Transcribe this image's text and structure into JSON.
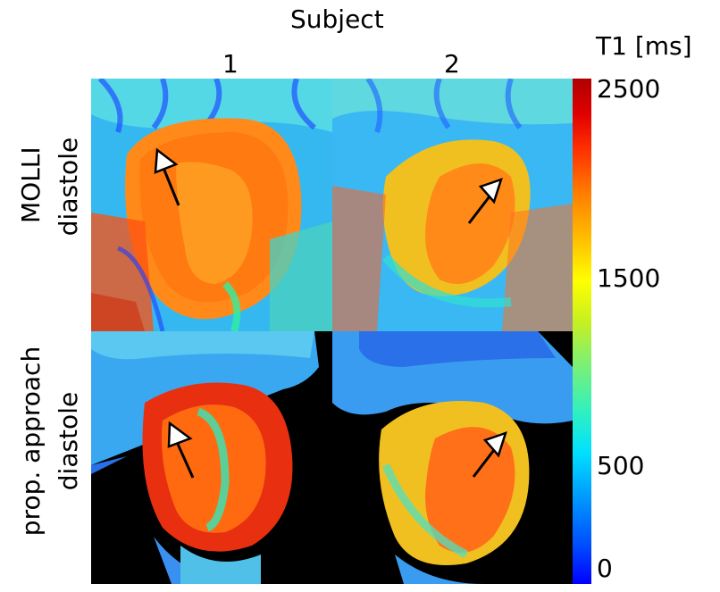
{
  "figure": {
    "column_header": "Subject",
    "columns": [
      "1",
      "2"
    ],
    "rows": [
      {
        "line1": "MOLLI",
        "line2": "diastole"
      },
      {
        "line1": "prop. approach",
        "line2": "diastole"
      }
    ]
  },
  "colorbar": {
    "title": "T1 [ms]",
    "ticks": [
      "2500",
      "1500",
      "500",
      "0"
    ],
    "range": [
      0,
      2500
    ],
    "colormap": "jet"
  },
  "colors": {
    "background": "#ffffff",
    "outside_mask": "#000000",
    "arrow_fill": "#ffffff",
    "arrow_stroke": "#000000"
  }
}
